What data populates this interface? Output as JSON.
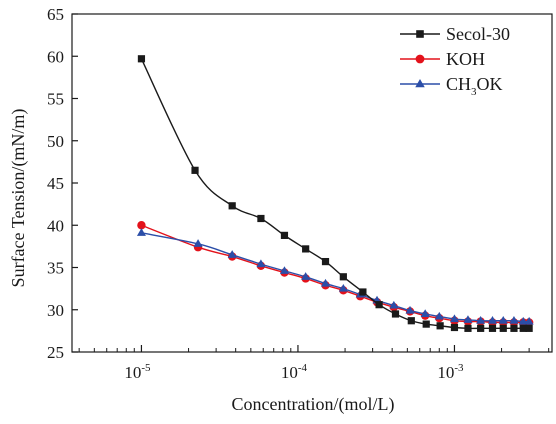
{
  "chart_data": {
    "type": "line",
    "xlabel": "Concentration/(mol/L)",
    "ylabel": "Surface Tension/(mN/m)",
    "x_scale": "log",
    "xlim": [
      3.6e-06,
      0.0042
    ],
    "ylim": [
      25,
      65
    ],
    "y_ticks": [
      25,
      30,
      35,
      40,
      45,
      50,
      55,
      60,
      65
    ],
    "x_ticks": [
      {
        "value": 1e-05,
        "base": "10",
        "exp": "-5"
      },
      {
        "value": 0.0001,
        "base": "10",
        "exp": "-4"
      },
      {
        "value": 0.001,
        "base": "10",
        "exp": "-3"
      }
    ],
    "legend": {
      "position": "top-right"
    },
    "series": [
      {
        "name": "Secol-30",
        "name_parts": {
          "main": "Secol-30",
          "sub": "",
          "rest": ""
        },
        "color": "#1a1a1a",
        "marker": "square",
        "x": [
          1e-05,
          2.2e-05,
          3.8e-05,
          5.8e-05,
          8.2e-05,
          0.000112,
          0.00015,
          0.000195,
          0.00026,
          0.00033,
          0.00042,
          0.00053,
          0.00066,
          0.00081,
          0.001,
          0.00122,
          0.00147,
          0.00175,
          0.00205,
          0.0024,
          0.00275,
          0.003
        ],
        "y": [
          59.7,
          46.5,
          42.3,
          40.8,
          38.8,
          37.2,
          35.7,
          33.9,
          32.1,
          30.6,
          29.5,
          28.7,
          28.3,
          28.1,
          27.9,
          27.8,
          27.8,
          27.8,
          27.8,
          27.8,
          27.8,
          27.8
        ]
      },
      {
        "name": "KOH",
        "name_parts": {
          "main": "KOH",
          "sub": "",
          "rest": ""
        },
        "color": "#e3121b",
        "marker": "circle",
        "x": [
          1e-05,
          2.3e-05,
          3.8e-05,
          5.8e-05,
          8.2e-05,
          0.000112,
          0.00015,
          0.000195,
          0.00025,
          0.00032,
          0.00041,
          0.00052,
          0.00065,
          0.0008,
          0.001,
          0.00122,
          0.00147,
          0.00175,
          0.00205,
          0.0024,
          0.00275,
          0.003
        ],
        "y": [
          40.0,
          37.4,
          36.3,
          35.2,
          34.4,
          33.7,
          32.9,
          32.3,
          31.6,
          30.9,
          30.3,
          29.8,
          29.3,
          29.0,
          28.7,
          28.6,
          28.6,
          28.5,
          28.5,
          28.5,
          28.5,
          28.5
        ]
      },
      {
        "name": "CH3OK",
        "name_parts": {
          "main": "CH",
          "sub": "3",
          "rest": "OK"
        },
        "color": "#2b4ea8",
        "marker": "triangle",
        "x": [
          1e-05,
          2.3e-05,
          3.8e-05,
          5.8e-05,
          8.2e-05,
          0.000112,
          0.00015,
          0.000195,
          0.00025,
          0.00032,
          0.00041,
          0.00052,
          0.00065,
          0.0008,
          0.001,
          0.00122,
          0.00147,
          0.00175,
          0.00205,
          0.0024,
          0.00275,
          0.003
        ],
        "y": [
          39.1,
          37.8,
          36.5,
          35.4,
          34.6,
          33.9,
          33.1,
          32.5,
          31.8,
          31.1,
          30.5,
          29.9,
          29.5,
          29.2,
          28.9,
          28.8,
          28.7,
          28.7,
          28.7,
          28.7,
          28.6,
          28.6
        ]
      }
    ]
  }
}
